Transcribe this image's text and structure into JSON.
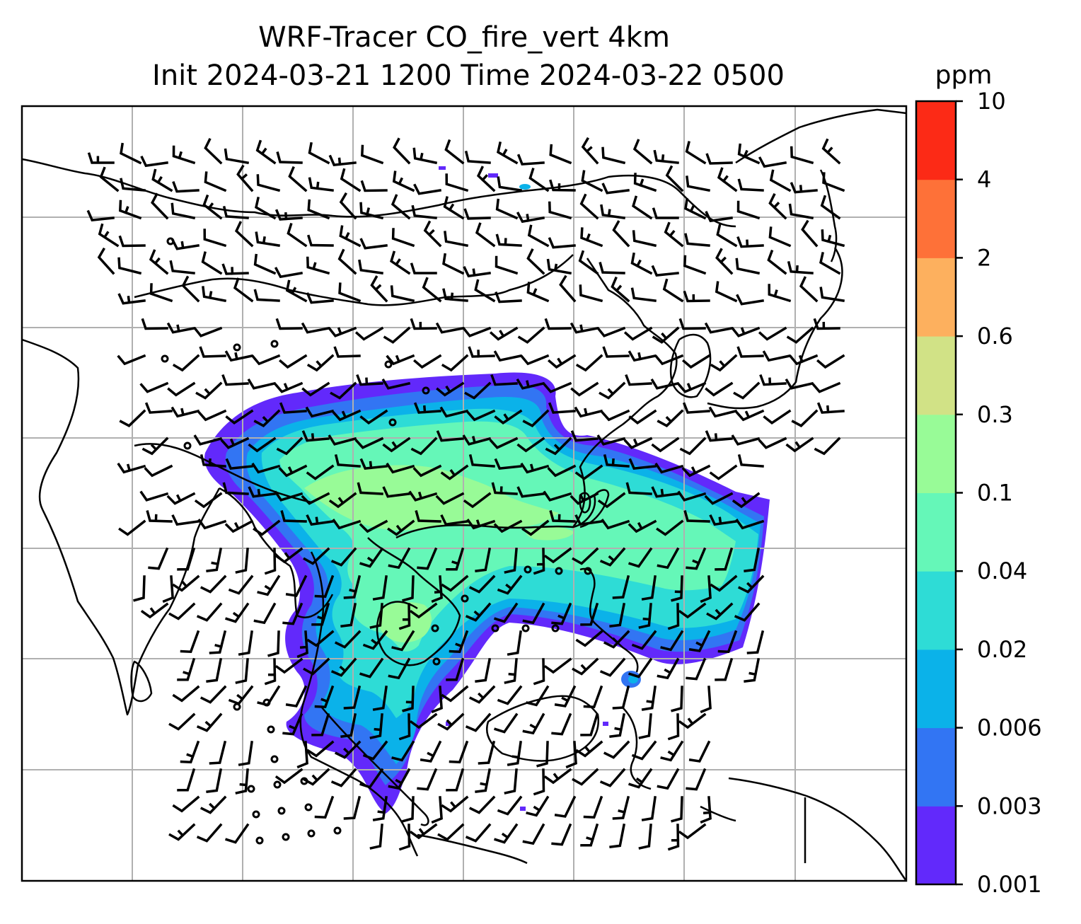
{
  "figure": {
    "title_line1": "WRF-Tracer CO_fire_vert 4km",
    "title_line2": "Init 2024-03-21 1200 Time 2024-03-22 0500"
  },
  "colorbar": {
    "unit": "ppm",
    "levels": [
      "0.001",
      "0.003",
      "0.006",
      "0.02",
      "0.04",
      "0.1",
      "0.3",
      "0.6",
      "2",
      "4",
      "10"
    ],
    "colors": [
      "#6229fb",
      "#3275f3",
      "#0bb2e9",
      "#2edcd6",
      "#65f7b8",
      "#98fb97",
      "#d1e286",
      "#fdb05e",
      "#fe7138",
      "#fc2a16"
    ]
  },
  "map": {
    "type": "filled-contour map with wind barbs and coastlines",
    "field": "CO_fire_vert",
    "grid": true,
    "coastline_color": "#000000",
    "gridline_color": "#b0b0b0",
    "barb_color": "#000000"
  }
}
